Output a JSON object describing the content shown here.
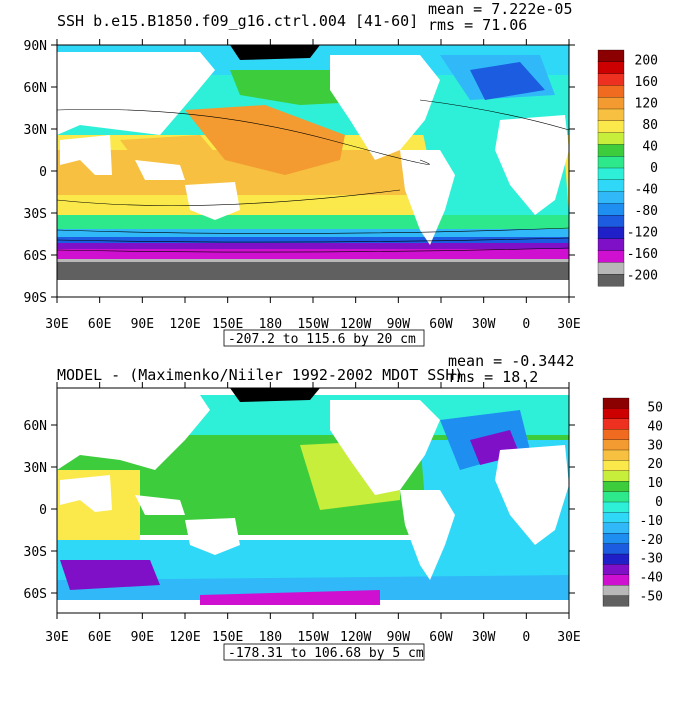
{
  "panels": [
    {
      "title": "SSH b.e15.B1850.f09_g16.ctrl.004 [41-60]",
      "mean": "mean = 7.222e-05",
      "rms": "rms = 71.06",
      "range_label": "-207.2 to 115.6 by 20 cm",
      "lat_labels": [
        "90N",
        "60N",
        "30N",
        "0",
        "30S",
        "60S",
        "90S"
      ],
      "lon_labels": [
        "30E",
        "60E",
        "90E",
        "120E",
        "150E",
        "180",
        "150W",
        "120W",
        "90W",
        "60W",
        "30W",
        "0",
        "30E"
      ],
      "colorbar": {
        "labels": [
          "200",
          "160",
          "120",
          "80",
          "40",
          "0",
          "-40",
          "-80",
          "-120",
          "-160",
          "-200"
        ],
        "colors": [
          "#8b0000",
          "#cc0000",
          "#ee3020",
          "#f06a20",
          "#f39a30",
          "#f7c040",
          "#fbe84a",
          "#c8ee3c",
          "#3ccc3c",
          "#2ee88c",
          "#2ef0d8",
          "#30d8f8",
          "#30b8f8",
          "#1e8ef0",
          "#1c5ce0",
          "#2020c8",
          "#8010c8",
          "#d010d0",
          "#b8b8b8",
          "#606060"
        ]
      }
    },
    {
      "title": "MODEL - (Maximenko/Niiler 1992-2002 MDOT SSH)",
      "mean": "mean = -0.3442",
      "rms": "rms = 18.2",
      "range_label": "-178.31 to 106.68 by 5 cm",
      "lat_labels": [
        "60N",
        "30N",
        "0",
        "30S",
        "60S"
      ],
      "lon_labels": [
        "30E",
        "60E",
        "90E",
        "120E",
        "150E",
        "180",
        "150W",
        "120W",
        "90W",
        "60W",
        "30W",
        "0",
        "30E"
      ],
      "colorbar": {
        "labels": [
          "50",
          "40",
          "30",
          "20",
          "10",
          "0",
          "-10",
          "-20",
          "-30",
          "-40",
          "-50"
        ],
        "colors": [
          "#8b0000",
          "#cc0000",
          "#ee3020",
          "#f06a20",
          "#f39a30",
          "#f7c040",
          "#fbe84a",
          "#c8ee3c",
          "#3ccc3c",
          "#2ee88c",
          "#2ef0d8",
          "#30d8f8",
          "#30b8f8",
          "#1e8ef0",
          "#1c5ce0",
          "#2020c8",
          "#8010c8",
          "#d010d0",
          "#b8b8b8",
          "#606060"
        ]
      }
    }
  ]
}
